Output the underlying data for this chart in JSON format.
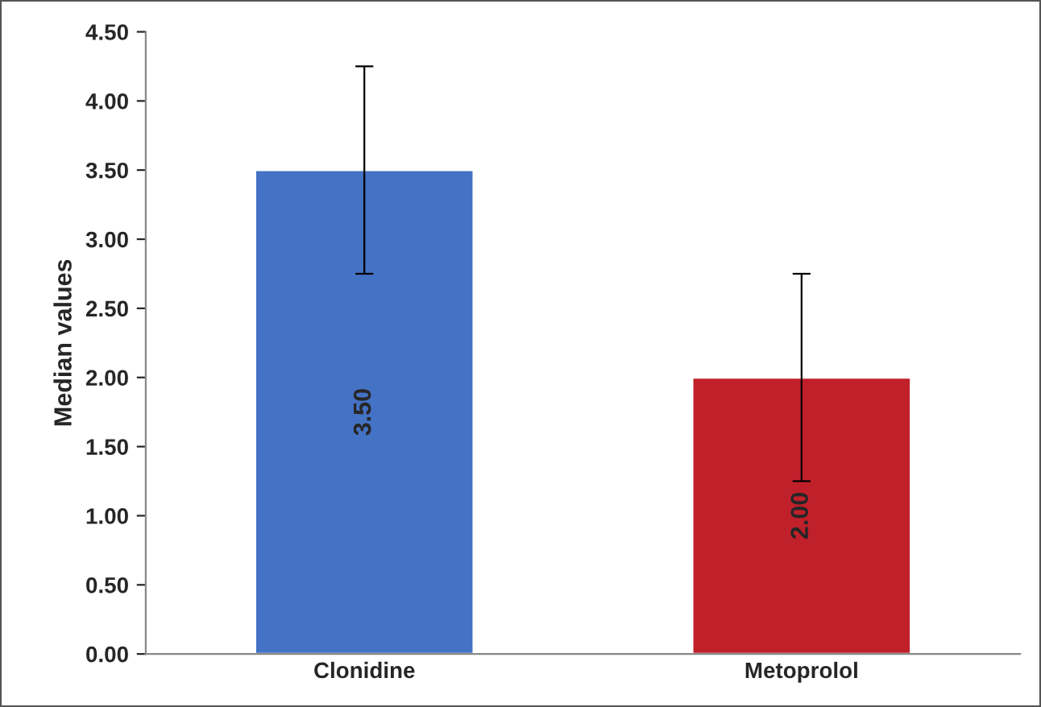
{
  "chart_data": {
    "type": "bar",
    "ylabel": "Median values",
    "categories": [
      "Clonidine",
      "Metoprolol"
    ],
    "values": [
      3.5,
      2.0
    ],
    "colors": [
      "#4472c4",
      "#c0202a"
    ],
    "errors": [
      0.75,
      0.75
    ],
    "value_labels": [
      "3.50",
      "2.00"
    ],
    "ylim": [
      0,
      4.5
    ],
    "yticks": [
      {
        "value": 0,
        "label": "0.00"
      },
      {
        "value": 0.5,
        "label": "0.50"
      },
      {
        "value": 1,
        "label": "1.00"
      },
      {
        "value": 1.5,
        "label": "1.50"
      },
      {
        "value": 2,
        "label": "2.00"
      },
      {
        "value": 2.5,
        "label": "2.50"
      },
      {
        "value": 3,
        "label": "3.00"
      },
      {
        "value": 3.5,
        "label": "3.50"
      },
      {
        "value": 4,
        "label": "4.00"
      },
      {
        "value": 4.5,
        "label": "4.50"
      }
    ],
    "grid": false
  }
}
